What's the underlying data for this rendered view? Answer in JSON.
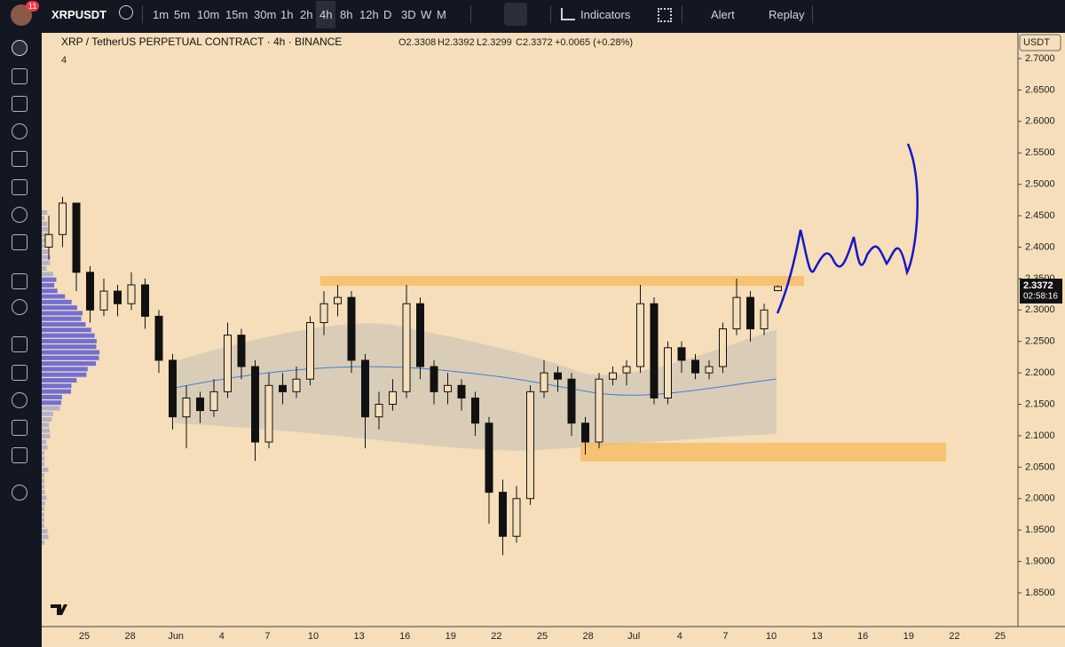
{
  "toolbar": {
    "badge": "11",
    "symbol": "XRPUSDT",
    "intervals": [
      "1m",
      "5m",
      "10m",
      "15m",
      "30m",
      "1h",
      "2h",
      "4h",
      "8h",
      "12h",
      "D",
      "3D",
      "W",
      "M"
    ],
    "active_interval": "4h",
    "indicators": "Indicators",
    "alert": "Alert",
    "replay": "Replay"
  },
  "legend": {
    "title": "XRP / TetherUS PERPETUAL CONTRACT · 4h · BINANCE",
    "open": "O2.3308",
    "high": "H2.3392",
    "low": "L2.3299",
    "close": "C2.3372",
    "change": "+0.0065 (+0.28%)",
    "indicator_count": "4"
  },
  "price_axis": {
    "currency": "USDT",
    "ticks": [
      {
        "value": 2.7,
        "label": "2.7000"
      },
      {
        "value": 2.65,
        "label": "2.6500"
      },
      {
        "value": 2.6,
        "label": "2.6000"
      },
      {
        "value": 2.55,
        "label": "2.5500"
      },
      {
        "value": 2.5,
        "label": "2.5000"
      },
      {
        "value": 2.45,
        "label": "2.4500"
      },
      {
        "value": 2.4,
        "label": "2.4000"
      },
      {
        "value": 2.35,
        "label": "2.3500"
      },
      {
        "value": 2.3,
        "label": "2.3000"
      },
      {
        "value": 2.25,
        "label": "2.2500"
      },
      {
        "value": 2.2,
        "label": "2.2000"
      },
      {
        "value": 2.15,
        "label": "2.1500"
      },
      {
        "value": 2.1,
        "label": "2.1000"
      },
      {
        "value": 2.05,
        "label": "2.0500"
      },
      {
        "value": 2.0,
        "label": "2.0000"
      },
      {
        "value": 1.95,
        "label": "1.9500"
      },
      {
        "value": 1.9,
        "label": "1.9000"
      },
      {
        "value": 1.85,
        "label": "1.8500"
      }
    ],
    "last_price": {
      "value": 2.3372,
      "label": "2.3372"
    },
    "countdown": "02:58:16"
  },
  "time_axis": {
    "labels": [
      "25",
      "28",
      "Jun",
      "4",
      "7",
      "10",
      "13",
      "16",
      "19",
      "22",
      "25",
      "28",
      "Jul",
      "4",
      "7",
      "10",
      "13",
      "16",
      "19",
      "22",
      "25"
    ]
  },
  "candles": [
    [
      2.4,
      2.45,
      2.38,
      2.42
    ],
    [
      2.42,
      2.48,
      2.4,
      2.47
    ],
    [
      2.47,
      2.47,
      2.33,
      2.36
    ],
    [
      2.36,
      2.37,
      2.28,
      2.3
    ],
    [
      2.3,
      2.35,
      2.29,
      2.33
    ],
    [
      2.33,
      2.34,
      2.29,
      2.31
    ],
    [
      2.31,
      2.36,
      2.3,
      2.34
    ],
    [
      2.34,
      2.35,
      2.27,
      2.29
    ],
    [
      2.29,
      2.3,
      2.2,
      2.22
    ],
    [
      2.22,
      2.23,
      2.11,
      2.13
    ],
    [
      2.13,
      2.18,
      2.08,
      2.16
    ],
    [
      2.16,
      2.17,
      2.12,
      2.14
    ],
    [
      2.14,
      2.19,
      2.13,
      2.17
    ],
    [
      2.17,
      2.28,
      2.16,
      2.26
    ],
    [
      2.26,
      2.27,
      2.19,
      2.21
    ],
    [
      2.21,
      2.22,
      2.06,
      2.09
    ],
    [
      2.09,
      2.2,
      2.08,
      2.18
    ],
    [
      2.18,
      2.2,
      2.15,
      2.17
    ],
    [
      2.17,
      2.21,
      2.16,
      2.19
    ],
    [
      2.19,
      2.29,
      2.18,
      2.28
    ],
    [
      2.28,
      2.33,
      2.26,
      2.31
    ],
    [
      2.31,
      2.34,
      2.29,
      2.32
    ],
    [
      2.32,
      2.33,
      2.2,
      2.22
    ],
    [
      2.22,
      2.23,
      2.08,
      2.13
    ],
    [
      2.13,
      2.17,
      2.11,
      2.15
    ],
    [
      2.15,
      2.19,
      2.14,
      2.17
    ],
    [
      2.17,
      2.34,
      2.16,
      2.31
    ],
    [
      2.31,
      2.32,
      2.19,
      2.21
    ],
    [
      2.21,
      2.22,
      2.15,
      2.17
    ],
    [
      2.17,
      2.2,
      2.15,
      2.18
    ],
    [
      2.18,
      2.19,
      2.14,
      2.16
    ],
    [
      2.16,
      2.17,
      2.1,
      2.12
    ],
    [
      2.12,
      2.13,
      1.96,
      2.01
    ],
    [
      2.01,
      2.03,
      1.91,
      1.94
    ],
    [
      1.94,
      2.02,
      1.93,
      2.0
    ],
    [
      2.0,
      2.18,
      1.99,
      2.17
    ],
    [
      2.17,
      2.22,
      2.16,
      2.2
    ],
    [
      2.2,
      2.21,
      2.17,
      2.19
    ],
    [
      2.19,
      2.2,
      2.1,
      2.12
    ],
    [
      2.12,
      2.13,
      2.07,
      2.09
    ],
    [
      2.09,
      2.2,
      2.08,
      2.19
    ],
    [
      2.19,
      2.21,
      2.18,
      2.2
    ],
    [
      2.2,
      2.22,
      2.18,
      2.21
    ],
    [
      2.21,
      2.34,
      2.2,
      2.31
    ],
    [
      2.31,
      2.32,
      2.15,
      2.16
    ],
    [
      2.16,
      2.25,
      2.15,
      2.24
    ],
    [
      2.24,
      2.25,
      2.2,
      2.22
    ],
    [
      2.22,
      2.23,
      2.19,
      2.2
    ],
    [
      2.2,
      2.22,
      2.19,
      2.21
    ],
    [
      2.21,
      2.28,
      2.2,
      2.27
    ],
    [
      2.27,
      2.35,
      2.26,
      2.32
    ],
    [
      2.32,
      2.33,
      2.25,
      2.27
    ],
    [
      2.27,
      2.31,
      2.26,
      2.3
    ],
    [
      2.3308,
      2.3392,
      2.3299,
      2.3372
    ]
  ]
}
